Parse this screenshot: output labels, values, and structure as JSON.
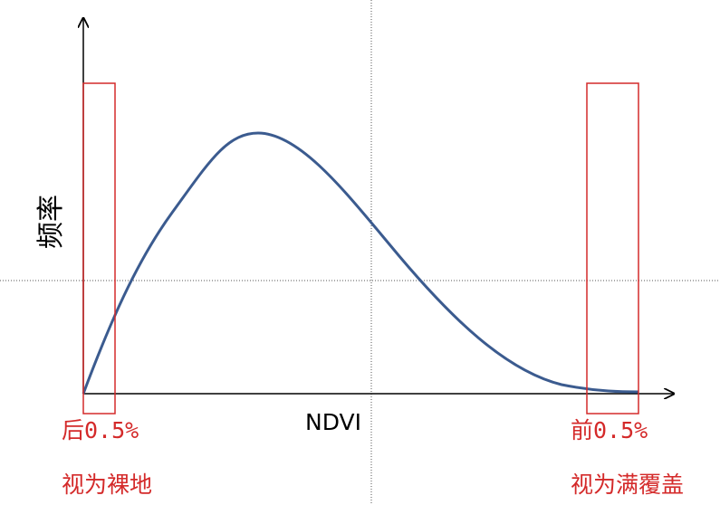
{
  "axes": {
    "y_label": "频率",
    "x_label": "NDVI"
  },
  "left_box": {
    "label": "后0.5%",
    "note": "视为裸地"
  },
  "right_box": {
    "label": "前0.5%",
    "note": "视为满覆盖"
  }
}
